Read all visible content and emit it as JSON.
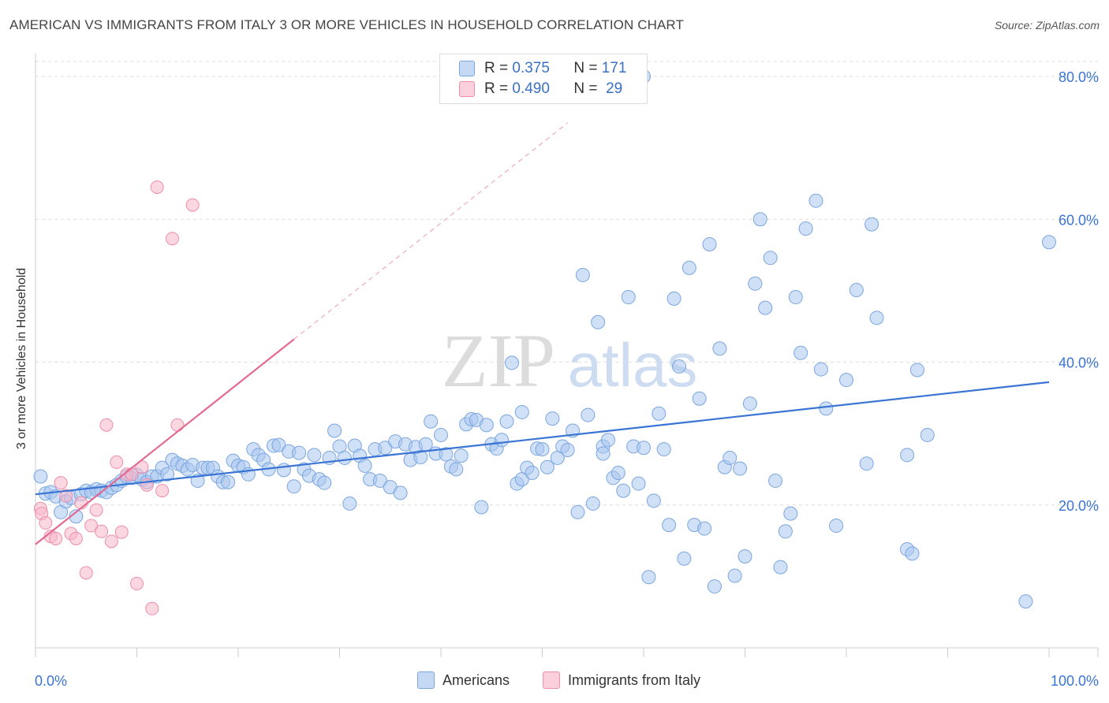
{
  "header": {
    "title": "AMERICAN VS IMMIGRANTS FROM ITALY 3 OR MORE VEHICLES IN HOUSEHOLD CORRELATION CHART",
    "source": "Source: ZipAtlas.com"
  },
  "watermark": {
    "zip": "ZIP",
    "atlas": "atlas"
  },
  "legend": {
    "r_label": "R =",
    "n_label": "N =",
    "rows": [
      {
        "r": "0.375",
        "n": "171",
        "color": "#a9c6ef"
      },
      {
        "r": "0.490",
        "n": "29",
        "color": "#f7b7cb"
      }
    ]
  },
  "chart_data": {
    "type": "scatter",
    "title": "AMERICAN VS IMMIGRANTS FROM ITALY 3 OR MORE VEHICLES IN HOUSEHOLD CORRELATION CHART",
    "xlabel": "",
    "ylabel": "3 or more Vehicles in Household",
    "xlim": [
      0,
      100
    ],
    "ylim": [
      0,
      83
    ],
    "x_tick_labels": [
      "0.0%",
      "100.0%"
    ],
    "y_ticks": [
      20,
      40,
      60,
      80
    ],
    "y_tick_labels": [
      "20.0%",
      "40.0%",
      "60.0%",
      "80.0%"
    ],
    "grid": true,
    "legend_position": "top-center",
    "series": [
      {
        "name": "Americans",
        "color": "#a9c6ef",
        "edge": "#7aa6e0",
        "trend": {
          "x": [
            0,
            100
          ],
          "y": [
            21.5,
            37.2
          ],
          "color": "#3a74d4"
        },
        "points": [
          [
            0.5,
            24
          ],
          [
            1,
            21.6
          ],
          [
            1.5,
            21.8
          ],
          [
            2,
            21.2
          ],
          [
            2.5,
            19
          ],
          [
            3,
            20.5
          ],
          [
            3.5,
            21
          ],
          [
            4,
            18.4
          ],
          [
            4.5,
            21.5
          ],
          [
            5,
            22
          ],
          [
            5.5,
            21.8
          ],
          [
            6,
            22.2
          ],
          [
            6.5,
            22
          ],
          [
            7,
            21.8
          ],
          [
            7.5,
            22.4
          ],
          [
            8,
            22.8
          ],
          [
            8.5,
            23.4
          ],
          [
            9,
            24
          ],
          [
            9.5,
            23.8
          ],
          [
            10,
            24.2
          ],
          [
            10.5,
            23.6
          ],
          [
            11,
            23.2
          ],
          [
            11.5,
            24
          ],
          [
            12,
            24
          ],
          [
            12.5,
            25.2
          ],
          [
            13,
            24.3
          ],
          [
            13.5,
            26.3
          ],
          [
            14,
            25.8
          ],
          [
            14.5,
            25.5
          ],
          [
            15,
            25
          ],
          [
            15.5,
            25.6
          ],
          [
            16,
            23.4
          ],
          [
            16.5,
            25.2
          ],
          [
            17,
            25.2
          ],
          [
            17.5,
            25.2
          ],
          [
            18,
            24
          ],
          [
            18.5,
            23.2
          ],
          [
            19,
            23.2
          ],
          [
            19.5,
            26.2
          ],
          [
            20,
            25.5
          ],
          [
            20.5,
            25.3
          ],
          [
            21,
            24.3
          ],
          [
            21.5,
            27.8
          ],
          [
            22,
            27
          ],
          [
            22.5,
            26.3
          ],
          [
            23,
            25
          ],
          [
            23.5,
            28.3
          ],
          [
            24,
            28.4
          ],
          [
            24.5,
            24.9
          ],
          [
            25,
            27.5
          ],
          [
            25.5,
            22.6
          ],
          [
            26,
            27.3
          ],
          [
            26.5,
            25
          ],
          [
            27,
            24.1
          ],
          [
            27.5,
            27
          ],
          [
            28,
            23.6
          ],
          [
            28.5,
            23.1
          ],
          [
            29,
            26.6
          ],
          [
            29.5,
            30.4
          ],
          [
            30,
            28.2
          ],
          [
            30.5,
            26.6
          ],
          [
            31,
            20.2
          ],
          [
            31.5,
            28.3
          ],
          [
            32,
            26.9
          ],
          [
            32.5,
            25.5
          ],
          [
            33,
            23.6
          ],
          [
            33.5,
            27.8
          ],
          [
            34,
            23.4
          ],
          [
            34.5,
            28
          ],
          [
            35,
            22.5
          ],
          [
            35.5,
            28.9
          ],
          [
            36,
            21.7
          ],
          [
            36.5,
            28.5
          ],
          [
            37,
            26.3
          ],
          [
            37.5,
            28.1
          ],
          [
            38,
            26.7
          ],
          [
            38.5,
            28.5
          ],
          [
            39,
            31.7
          ],
          [
            39.5,
            27.2
          ],
          [
            40,
            29.8
          ],
          [
            40.5,
            27.1
          ],
          [
            41,
            25.4
          ],
          [
            41.5,
            25
          ],
          [
            42,
            26.9
          ],
          [
            42.5,
            31.3
          ],
          [
            43,
            32
          ],
          [
            43.5,
            31.9
          ],
          [
            44,
            19.7
          ],
          [
            44.5,
            31.2
          ],
          [
            45,
            28.5
          ],
          [
            45.5,
            27.9
          ],
          [
            46,
            29.1
          ],
          [
            46.5,
            31.7
          ],
          [
            47,
            39.9
          ],
          [
            47.5,
            23
          ],
          [
            48,
            23.6
          ],
          [
            48.5,
            25.2
          ],
          [
            49,
            24.5
          ],
          [
            49.5,
            27.9
          ],
          [
            50,
            27.8
          ],
          [
            50.5,
            25.3
          ],
          [
            51,
            32.1
          ],
          [
            51.5,
            26.6
          ],
          [
            52,
            28.2
          ],
          [
            52.5,
            27.7
          ],
          [
            53,
            30.4
          ],
          [
            53.5,
            19
          ],
          [
            54,
            52.2
          ],
          [
            54.5,
            32.6
          ],
          [
            55,
            20.2
          ],
          [
            55.5,
            45.6
          ],
          [
            56,
            28.2
          ],
          [
            56.5,
            29.1
          ],
          [
            57,
            23.8
          ],
          [
            57.5,
            24.5
          ],
          [
            58,
            22
          ],
          [
            58.5,
            49.1
          ],
          [
            59,
            28.2
          ],
          [
            59.5,
            23
          ],
          [
            60,
            28
          ],
          [
            60.5,
            9.9
          ],
          [
            61,
            20.6
          ],
          [
            61.5,
            32.8
          ],
          [
            62,
            27.8
          ],
          [
            62.5,
            17.2
          ],
          [
            63,
            48.9
          ],
          [
            63.5,
            39.4
          ],
          [
            64,
            12.5
          ],
          [
            64.5,
            53.2
          ],
          [
            65,
            17.2
          ],
          [
            65.5,
            34.9
          ],
          [
            66,
            16.7
          ],
          [
            66.5,
            56.5
          ],
          [
            67,
            8.6
          ],
          [
            67.5,
            41.9
          ],
          [
            68,
            25.3
          ],
          [
            68.5,
            26.6
          ],
          [
            69,
            10.1
          ],
          [
            69.5,
            25.1
          ],
          [
            70,
            12.8
          ],
          [
            70.5,
            34.2
          ],
          [
            71,
            51
          ],
          [
            71.5,
            60
          ],
          [
            72,
            47.6
          ],
          [
            72.5,
            54.6
          ],
          [
            73,
            23.4
          ],
          [
            73.5,
            11.3
          ],
          [
            74,
            16.3
          ],
          [
            74.5,
            18.8
          ],
          [
            75,
            49.1
          ],
          [
            75.5,
            41.3
          ],
          [
            76,
            58.7
          ],
          [
            77,
            62.6
          ],
          [
            77.5,
            39
          ],
          [
            78,
            33.5
          ],
          [
            79,
            17.1
          ],
          [
            80,
            37.5
          ],
          [
            81,
            50.1
          ],
          [
            82,
            25.8
          ],
          [
            82.5,
            59.3
          ],
          [
            83,
            46.2
          ],
          [
            86,
            13.8
          ],
          [
            86.5,
            13.2
          ],
          [
            87,
            38.9
          ],
          [
            88,
            29.8
          ],
          [
            97.7,
            6.5
          ],
          [
            100,
            56.8
          ],
          [
            60,
            80
          ],
          [
            56,
            27.2
          ],
          [
            48,
            33
          ],
          [
            86,
            27
          ]
        ]
      },
      {
        "name": "Immigrants from Italy",
        "color": "#f7b7cb",
        "edge": "#ee8eab",
        "trend": {
          "x": [
            0,
            25.5
          ],
          "y": [
            14.5,
            43.2
          ],
          "color": "#e26a92"
        },
        "trend_extension": {
          "x": [
            25.5,
            52.5
          ],
          "y": [
            43.2,
            73.5
          ]
        },
        "points": [
          [
            0.5,
            19.5
          ],
          [
            0.6,
            18.8
          ],
          [
            1,
            17.5
          ],
          [
            1.5,
            15.6
          ],
          [
            2,
            15.3
          ],
          [
            2.5,
            23.1
          ],
          [
            3,
            21.3
          ],
          [
            3.5,
            16
          ],
          [
            4,
            15.3
          ],
          [
            4.5,
            20.3
          ],
          [
            5,
            10.5
          ],
          [
            5.5,
            17.1
          ],
          [
            6,
            19.3
          ],
          [
            6.5,
            16.3
          ],
          [
            7,
            31.2
          ],
          [
            7.5,
            14.9
          ],
          [
            8,
            26
          ],
          [
            8.5,
            16.2
          ],
          [
            9,
            24.3
          ],
          [
            9.5,
            24.3
          ],
          [
            10,
            9
          ],
          [
            10.5,
            25.3
          ],
          [
            11,
            22.8
          ],
          [
            11.5,
            5.5
          ],
          [
            12,
            64.5
          ],
          [
            12.5,
            22
          ],
          [
            13.5,
            57.3
          ],
          [
            14,
            31.2
          ],
          [
            15.5,
            62
          ]
        ]
      }
    ]
  },
  "bottom_legend": {
    "items": [
      {
        "label": "Americans",
        "color": "#a9c6ef"
      },
      {
        "label": "Immigrants from Italy",
        "color": "#f7b7cb"
      }
    ]
  }
}
